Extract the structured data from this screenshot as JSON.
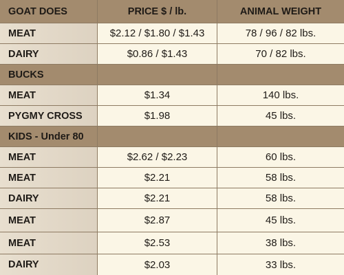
{
  "header": {
    "col1": "GOAT DOES",
    "col2": "PRICE $ / lb.",
    "col3": "ANIMAL WEIGHT"
  },
  "sections": [
    {
      "title": "",
      "rows": [
        {
          "type": "MEAT",
          "price": "$2.12 / $1.80 / $1.43",
          "weight": "78 / 96 / 82 lbs."
        },
        {
          "type": "DAIRY",
          "price": "$0.86 / $1.43",
          "weight": "70 / 82 lbs."
        }
      ]
    },
    {
      "title": "BUCKS",
      "rows": [
        {
          "type": "MEAT",
          "price": "$1.34",
          "weight": "140 lbs."
        },
        {
          "type": "PYGMY CROSS",
          "price": "$1.98",
          "weight": "45 lbs."
        }
      ]
    },
    {
      "title": "KIDS - Under 80",
      "rows": [
        {
          "type": "MEAT",
          "price": "$2.62 / $2.23",
          "weight": "60 lbs."
        },
        {
          "type": "MEAT",
          "price": "$2.21",
          "weight": "58 lbs."
        },
        {
          "type": "DAIRY",
          "price": "$2.21",
          "weight": "58 lbs."
        },
        {
          "type": "MEAT",
          "price": "$2.87",
          "weight": "45 lbs."
        },
        {
          "type": "MEAT",
          "price": "$2.53",
          "weight": "38 lbs."
        },
        {
          "type": "DAIRY",
          "price": "$2.03",
          "weight": "33 lbs."
        }
      ]
    }
  ]
}
